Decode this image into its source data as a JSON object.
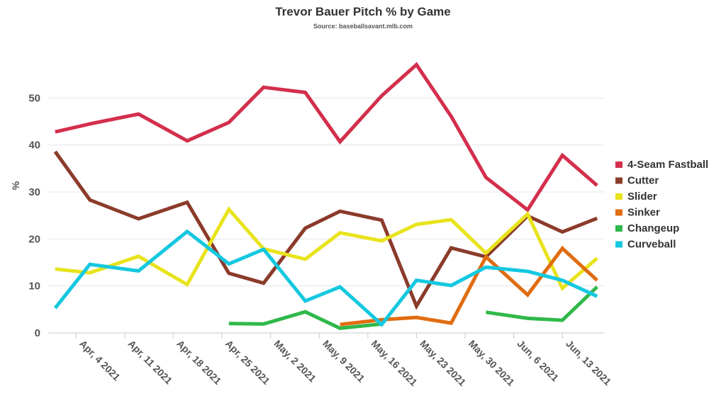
{
  "chart_data": {
    "type": "line",
    "title": "Trevor Bauer Pitch % by Game",
    "subtitle": "Source: baseballsavant.mlb.com",
    "xlabel": "",
    "ylabel": "%",
    "ylim": [
      0,
      57
    ],
    "yticks": [
      0,
      10,
      20,
      30,
      40,
      50
    ],
    "grid": "horizontal",
    "legend_position": "right",
    "x": [
      "Apr 1 2021",
      "Apr 6 2021",
      "Apr 13 2021",
      "Apr 20 2021",
      "Apr 26 2021",
      "May 1 2021",
      "May 7 2021",
      "May 12 2021",
      "May 18 2021",
      "May 23 2021",
      "May 28 2021",
      "Jun 2 2021",
      "Jun 8 2021",
      "Jun 13 2021",
      "Jun 18 2021"
    ],
    "x_ticks": [
      {
        "label": "Apr, 4 2021",
        "x": "Apr 4 2021"
      },
      {
        "label": "Apr, 11 2021",
        "x": "Apr 11 2021"
      },
      {
        "label": "Apr, 18 2021",
        "x": "Apr 18 2021"
      },
      {
        "label": "Apr, 25 2021",
        "x": "Apr 25 2021"
      },
      {
        "label": "May, 2 2021",
        "x": "May 2 2021"
      },
      {
        "label": "May, 9 2021",
        "x": "May 9 2021"
      },
      {
        "label": "May, 16 2021",
        "x": "May 16 2021"
      },
      {
        "label": "May, 23 2021",
        "x": "May 23 2021"
      },
      {
        "label": "May, 30 2021",
        "x": "May 30 2021"
      },
      {
        "label": "Jun, 6 2021",
        "x": "Jun 6 2021"
      },
      {
        "label": "Jun, 13 2021",
        "x": "Jun 13 2021"
      }
    ],
    "series": [
      {
        "name": "4-Seam Fastball",
        "color": "#d32f4c",
        "values": [
          42.8,
          44.5,
          46.6,
          40.9,
          44.8,
          52.3,
          51.2,
          40.7,
          50.5,
          57.1,
          46.1,
          33.1,
          26.2,
          37.8,
          31.4
        ]
      },
      {
        "name": "Cutter",
        "color": "#8b3b2a",
        "values": [
          38.6,
          28.3,
          24.3,
          27.8,
          12.7,
          10.6,
          22.3,
          25.9,
          24.0,
          5.7,
          18.1,
          16.2,
          24.9,
          21.5,
          24.4
        ]
      },
      {
        "name": "Slider",
        "color": "#e8e31c",
        "values": [
          13.6,
          12.8,
          16.3,
          10.3,
          26.3,
          17.9,
          15.7,
          21.3,
          19.6,
          23.1,
          24.1,
          17.0,
          25.3,
          9.5,
          15.9
        ]
      },
      {
        "name": "Sinker",
        "color": "#e06c10",
        "values": [
          null,
          null,
          null,
          null,
          null,
          null,
          null,
          1.8,
          2.8,
          3.3,
          2.1,
          16.2,
          8.1,
          18.0,
          11.2
        ]
      },
      {
        "name": "Changeup",
        "color": "#2fb84a",
        "values": [
          null,
          null,
          null,
          null,
          2.0,
          1.9,
          4.5,
          1.0,
          1.9,
          null,
          null,
          4.4,
          3.1,
          2.7,
          9.8
        ]
      },
      {
        "name": "Curveball",
        "color": "#14c8e0",
        "values": [
          5.3,
          14.6,
          13.2,
          21.6,
          14.7,
          17.8,
          6.8,
          9.8,
          1.8,
          11.2,
          10.1,
          14.0,
          13.1,
          11.2,
          7.8
        ]
      }
    ]
  }
}
